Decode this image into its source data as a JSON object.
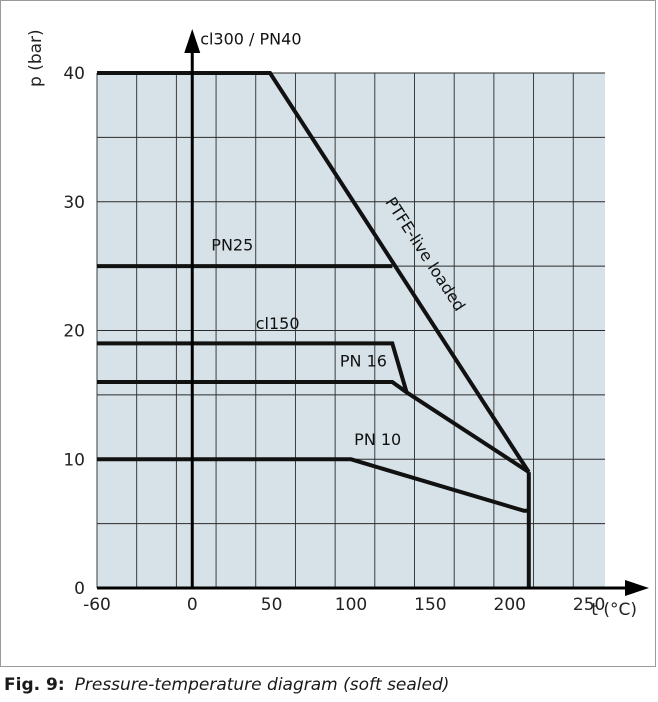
{
  "figure": {
    "caption_label": "Fig. 9:",
    "caption_text": "Pressure-temperature diagram  (soft sealed)"
  },
  "chart_data": {
    "type": "line",
    "xlabel": "t (°C)",
    "ylabel": "p (bar)",
    "xlim": [
      -60,
      260
    ],
    "ylim": [
      0,
      40
    ],
    "x_ticks": [
      -60,
      0,
      50,
      100,
      150,
      200,
      250
    ],
    "y_ticks": [
      0,
      10,
      20,
      30,
      40
    ],
    "grid": true,
    "plot_background": "#d6e2e8",
    "line_color": "#111111",
    "series": [
      {
        "name": "cl300 / PN40",
        "points": [
          [
            -60,
            40
          ],
          [
            49,
            40
          ],
          [
            212,
            9
          ]
        ]
      },
      {
        "name": "PN25",
        "points": [
          [
            -60,
            25
          ],
          [
            126,
            25
          ]
        ]
      },
      {
        "name": "cl150",
        "points": [
          [
            -60,
            19
          ],
          [
            126,
            19
          ],
          [
            135,
            15.2
          ]
        ]
      },
      {
        "name": "PN 16",
        "points": [
          [
            -60,
            16
          ],
          [
            126,
            16
          ],
          [
            135,
            15.2
          ],
          [
            212,
            9
          ]
        ]
      },
      {
        "name": "PN 10",
        "points": [
          [
            -60,
            10
          ],
          [
            100,
            10
          ],
          [
            209,
            6
          ],
          [
            212,
            6
          ]
        ]
      },
      {
        "name": "",
        "points": [
          [
            212,
            9
          ],
          [
            212,
            0
          ]
        ]
      }
    ],
    "annotations": [
      {
        "text": "cl300 / PN40",
        "x": 5,
        "y": 42.2
      },
      {
        "text": "PTFE-live loaded",
        "x": 120,
        "y": 30
      },
      {
        "text": "PN25",
        "x": 12,
        "y": 26.2
      },
      {
        "text": "cl150",
        "x": 40,
        "y": 20.1
      },
      {
        "text": "PN 16",
        "x": 93,
        "y": 17.2
      },
      {
        "text": "PN 10",
        "x": 102,
        "y": 11.1
      }
    ]
  }
}
